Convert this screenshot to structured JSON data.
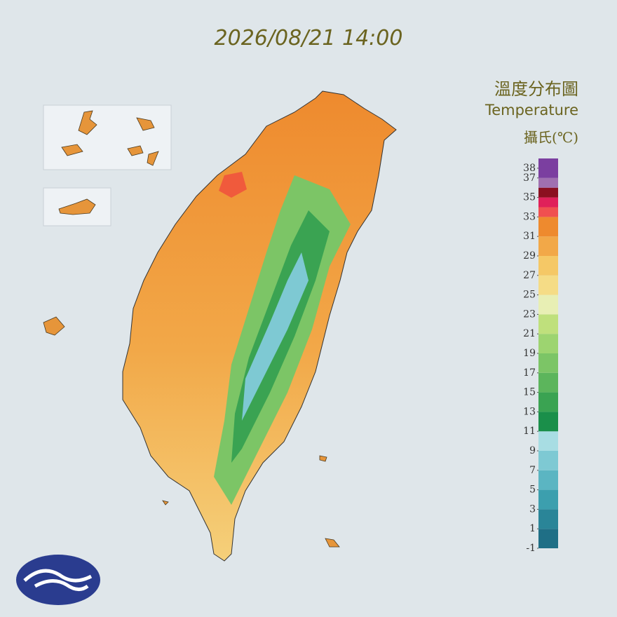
{
  "header": {
    "timestamp": "2026/08/21 14:00"
  },
  "legend": {
    "title": "溫度分布圖",
    "subtitle": "Temperature",
    "unit": "攝氏(℃)",
    "ylim": [
      -1,
      39
    ],
    "ticks": [
      38,
      37,
      35,
      33,
      31,
      29,
      27,
      25,
      23,
      21,
      19,
      17,
      15,
      13,
      11,
      9,
      7,
      5,
      3,
      1,
      -1
    ],
    "band_edges": [
      -1,
      1,
      3,
      5,
      7,
      9,
      11,
      13,
      15,
      17,
      19,
      21,
      23,
      25,
      27,
      29,
      31,
      33,
      34,
      35,
      36,
      37,
      39
    ],
    "band_colors": [
      "#1f6f86",
      "#2a8598",
      "#3c9fae",
      "#5bb5c2",
      "#7ec9d3",
      "#a8dde3",
      "#1a8f4a",
      "#3aa352",
      "#5cb55c",
      "#7cc566",
      "#9dd470",
      "#bfe07c",
      "#e8efb4",
      "#f5dc86",
      "#f5c866",
      "#f2a848",
      "#ee8a2e",
      "#f05050",
      "#e0205a",
      "#8b1020",
      "#a070b0",
      "#7b3fa0"
    ]
  }
}
